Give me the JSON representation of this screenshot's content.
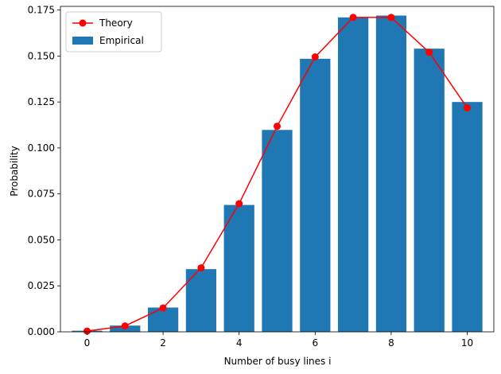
{
  "chart_data": {
    "type": "bar",
    "title": "",
    "xlabel": "Number of busy lines i",
    "ylabel": "Probability",
    "xlim": [
      -0.7,
      10.7
    ],
    "ylim": [
      0,
      0.177
    ],
    "grid": false,
    "legend_placement": "top-left",
    "x": [
      0,
      1,
      2,
      3,
      4,
      5,
      6,
      7,
      8,
      9,
      10
    ],
    "x_ticks": [
      0,
      2,
      4,
      6,
      8,
      10
    ],
    "x_tick_labels": [
      "0",
      "2",
      "4",
      "6",
      "8",
      "10"
    ],
    "y_ticks": [
      0,
      0.025,
      0.05,
      0.075,
      0.1,
      0.125,
      0.15,
      0.175
    ],
    "y_tick_labels": [
      "0.000",
      "0.025",
      "0.050",
      "0.075",
      "0.100",
      "0.125",
      "0.150",
      "0.175"
    ],
    "series": [
      {
        "name": "Empirical",
        "kind": "bar",
        "color": "#1f77b4",
        "values": [
          0.0006,
          0.0034,
          0.0132,
          0.0341,
          0.069,
          0.1098,
          0.1485,
          0.171,
          0.172,
          0.154,
          0.125
        ]
      },
      {
        "name": "Theory",
        "kind": "line",
        "marker": "circle",
        "color": "#ff0000",
        "values": [
          0.0004,
          0.0032,
          0.013,
          0.0348,
          0.0697,
          0.1118,
          0.1495,
          0.171,
          0.171,
          0.152,
          0.1218
        ]
      }
    ]
  }
}
